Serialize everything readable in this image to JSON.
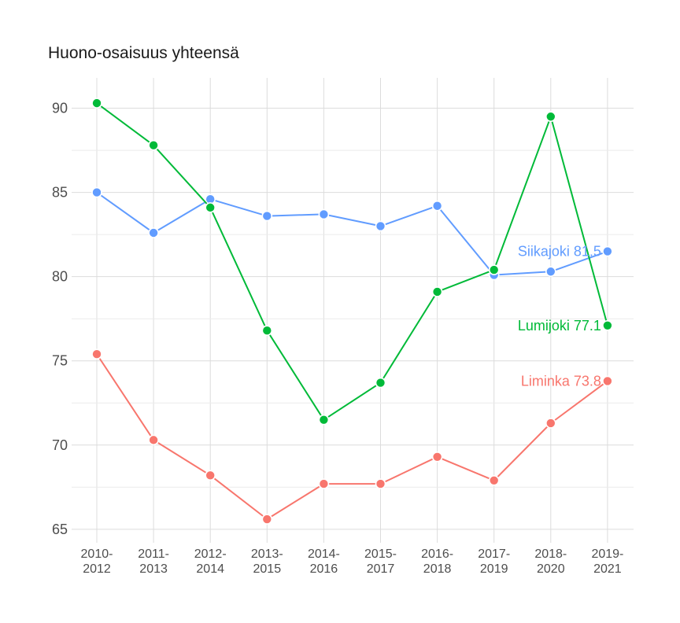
{
  "chart_data": {
    "type": "line",
    "title": "Huono-osaisuus yhteensä",
    "xlabel": "",
    "ylabel": "",
    "categories": [
      [
        "2010-",
        "2012"
      ],
      [
        "2011-",
        "2013"
      ],
      [
        "2012-",
        "2014"
      ],
      [
        "2013-",
        "2015"
      ],
      [
        "2014-",
        "2016"
      ],
      [
        "2015-",
        "2017"
      ],
      [
        "2016-",
        "2018"
      ],
      [
        "2017-",
        "2019"
      ],
      [
        "2018-",
        "2020"
      ],
      [
        "2019-",
        "2021"
      ]
    ],
    "y_ticks": [
      65,
      70,
      75,
      80,
      85,
      90
    ],
    "ylim": [
      64.2,
      91.8
    ],
    "grid": true,
    "series": [
      {
        "name": "Siikajoki",
        "color": "#619cff",
        "end_label": "Siikajoki 81.5",
        "values": [
          85.0,
          82.6,
          84.6,
          83.6,
          83.7,
          83.0,
          84.2,
          80.1,
          80.3,
          81.5
        ]
      },
      {
        "name": "Lumijoki",
        "color": "#00ba38",
        "end_label": "Lumijoki 77.1",
        "values": [
          90.3,
          87.8,
          84.1,
          76.8,
          71.5,
          73.7,
          79.1,
          80.4,
          89.5,
          77.1
        ]
      },
      {
        "name": "Liminka",
        "color": "#f8766d",
        "end_label": "Liminka 73.8",
        "values": [
          75.4,
          70.3,
          68.2,
          65.6,
          67.7,
          67.7,
          69.3,
          67.9,
          71.3,
          73.8
        ]
      }
    ]
  }
}
